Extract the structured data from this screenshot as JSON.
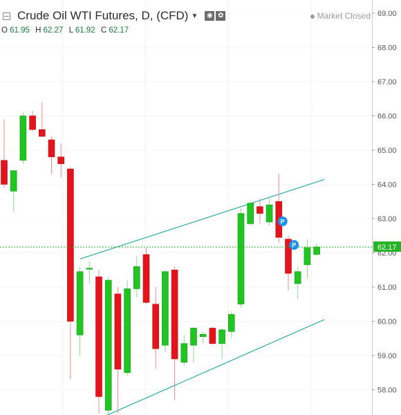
{
  "header": {
    "title": "Crude Oil WTI Futures, D, (CFD)",
    "status": "Market Closed",
    "ohlc": {
      "o_label": "O",
      "o_value": "61.95",
      "h_label": "H",
      "h_value": "62.27",
      "l_label": "L",
      "l_value": "61.92",
      "c_label": "C",
      "c_value": "62.17"
    }
  },
  "chart_data": {
    "type": "candlestick",
    "ylim": [
      57.25,
      69.25
    ],
    "y_ticks": [
      "69.00",
      "68.00",
      "67.00",
      "66.00",
      "65.00",
      "64.00",
      "63.00",
      "62.00",
      "61.00",
      "60.00",
      "59.00",
      "58.00"
    ],
    "last_price_label": "62.17",
    "last_price": 62.17,
    "colors": {
      "up": "#21c521",
      "down": "#e3141c",
      "channel": "#2fa9a3",
      "last_line": "#1fad1f",
      "marker": "#1e90e8"
    },
    "candles": [
      {
        "i": 0,
        "o": 64.7,
        "h": 65.9,
        "l": 63.9,
        "c": 64.0
      },
      {
        "i": 1,
        "o": 63.8,
        "h": 64.4,
        "l": 63.2,
        "c": 64.4
      },
      {
        "i": 2,
        "o": 64.7,
        "h": 66.1,
        "l": 64.6,
        "c": 66.0
      },
      {
        "i": 3,
        "o": 66.0,
        "h": 66.15,
        "l": 65.55,
        "c": 65.6
      },
      {
        "i": 4,
        "o": 65.6,
        "h": 66.4,
        "l": 65.4,
        "c": 65.4
      },
      {
        "i": 5,
        "o": 65.3,
        "h": 65.4,
        "l": 64.3,
        "c": 64.8
      },
      {
        "i": 6,
        "o": 64.8,
        "h": 65.2,
        "l": 64.2,
        "c": 64.6
      },
      {
        "i": 7,
        "o": 64.45,
        "h": 64.5,
        "l": 58.3,
        "c": 60.0
      },
      {
        "i": 8,
        "o": 59.6,
        "h": 61.6,
        "l": 59.0,
        "c": 61.45
      },
      {
        "i": 9,
        "o": 61.55,
        "h": 61.75,
        "l": 61.1,
        "c": 61.55
      },
      {
        "i": 10,
        "o": 61.3,
        "h": 61.5,
        "l": 57.3,
        "c": 57.8
      },
      {
        "i": 11,
        "o": 57.4,
        "h": 61.3,
        "l": 57.1,
        "c": 61.2
      },
      {
        "i": 12,
        "o": 60.8,
        "h": 61.0,
        "l": 57.3,
        "c": 58.6
      },
      {
        "i": 13,
        "o": 58.5,
        "h": 61.2,
        "l": 58.4,
        "c": 60.95
      },
      {
        "i": 14,
        "o": 60.95,
        "h": 61.9,
        "l": 60.7,
        "c": 61.6
      },
      {
        "i": 15,
        "o": 61.95,
        "h": 62.15,
        "l": 60.5,
        "c": 60.55
      },
      {
        "i": 16,
        "o": 60.5,
        "h": 61.0,
        "l": 58.6,
        "c": 59.2
      },
      {
        "i": 17,
        "o": 59.3,
        "h": 61.5,
        "l": 59.1,
        "c": 61.45
      },
      {
        "i": 18,
        "o": 61.5,
        "h": 61.6,
        "l": 57.7,
        "c": 58.9
      },
      {
        "i": 19,
        "o": 58.8,
        "h": 59.6,
        "l": 58.7,
        "c": 59.35
      },
      {
        "i": 20,
        "o": 59.3,
        "h": 59.8,
        "l": 58.8,
        "c": 59.8
      },
      {
        "i": 21,
        "o": 59.55,
        "h": 59.7,
        "l": 59.35,
        "c": 59.62
      },
      {
        "i": 22,
        "o": 59.8,
        "h": 59.85,
        "l": 59.3,
        "c": 59.35
      },
      {
        "i": 23,
        "o": 59.35,
        "h": 59.8,
        "l": 58.9,
        "c": 59.75
      },
      {
        "i": 24,
        "o": 59.7,
        "h": 60.3,
        "l": 59.5,
        "c": 60.2
      },
      {
        "i": 25,
        "o": 60.5,
        "h": 63.3,
        "l": 60.4,
        "c": 63.15
      },
      {
        "i": 26,
        "o": 62.85,
        "h": 63.5,
        "l": 62.8,
        "c": 63.45
      },
      {
        "i": 27,
        "o": 63.35,
        "h": 63.6,
        "l": 62.85,
        "c": 63.15
      },
      {
        "i": 28,
        "o": 62.9,
        "h": 63.6,
        "l": 62.8,
        "c": 63.4
      },
      {
        "i": 29,
        "o": 63.5,
        "h": 64.3,
        "l": 62.3,
        "c": 62.45
      },
      {
        "i": 30,
        "o": 62.4,
        "h": 62.5,
        "l": 60.9,
        "c": 61.4
      },
      {
        "i": 31,
        "o": 61.1,
        "h": 61.6,
        "l": 60.65,
        "c": 61.45
      },
      {
        "i": 32,
        "o": 61.65,
        "h": 62.4,
        "l": 61.25,
        "c": 62.15
      },
      {
        "i": 33,
        "o": 61.95,
        "h": 62.27,
        "l": 61.92,
        "c": 62.17
      }
    ],
    "channel": {
      "upper": [
        [
          8.0,
          61.82
        ],
        [
          33.8,
          64.14
        ]
      ],
      "lower": [
        [
          10.8,
          57.25
        ],
        [
          33.8,
          60.05
        ]
      ]
    },
    "markers": [
      {
        "label": "P",
        "candle": 29.4,
        "y": 62.92
      },
      {
        "label": "P",
        "candle": 30.6,
        "y": 62.23
      }
    ]
  }
}
